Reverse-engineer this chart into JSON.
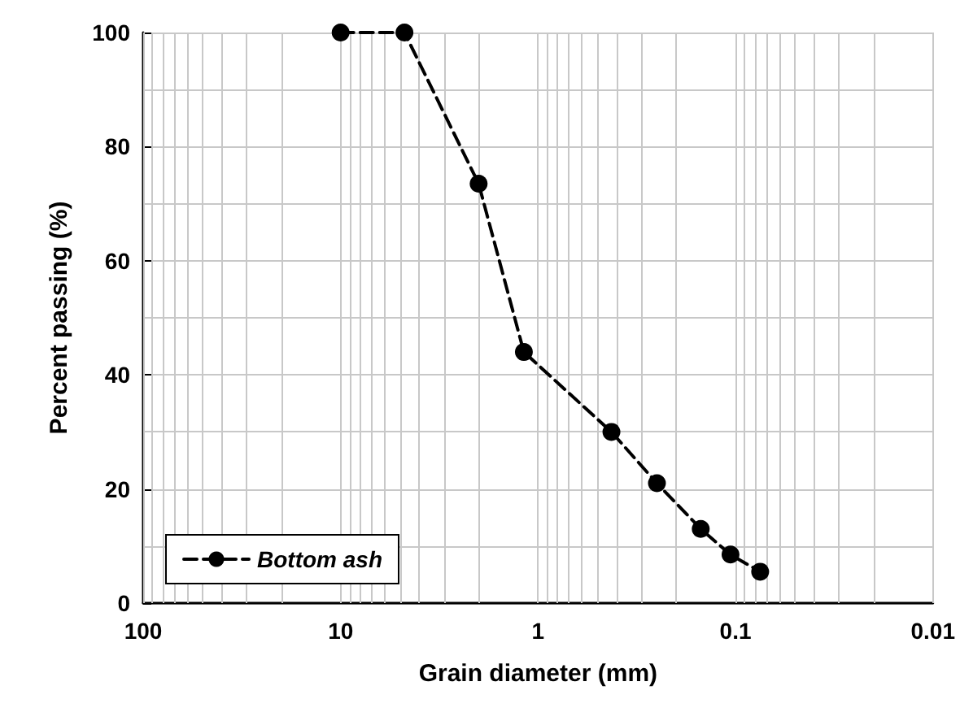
{
  "chart_data": {
    "type": "line",
    "xlabel": "Grain diameter (mm)",
    "ylabel": "Percent passing (%)",
    "x": [
      10,
      4.75,
      2,
      1.18,
      0.425,
      0.25,
      0.15,
      0.106,
      0.075
    ],
    "series": [
      {
        "name": "Bottom ash",
        "color": "#000000",
        "values": [
          100,
          100,
          73.5,
          44,
          30,
          21,
          13,
          8.5,
          5.5
        ]
      }
    ],
    "xlim": [
      100,
      0.01
    ],
    "xticks": [
      100,
      10,
      1,
      {
        "value": 0.1,
        "label": "0.1"
      },
      {
        "value": 0.01,
        "label": "0.01"
      }
    ],
    "ylim": [
      0,
      100
    ],
    "yticks": [
      0,
      20,
      40,
      60,
      80,
      100
    ],
    "log": "x",
    "grid": true,
    "legend": "bottom left",
    "marker": "circle",
    "line_style": "dashed"
  }
}
